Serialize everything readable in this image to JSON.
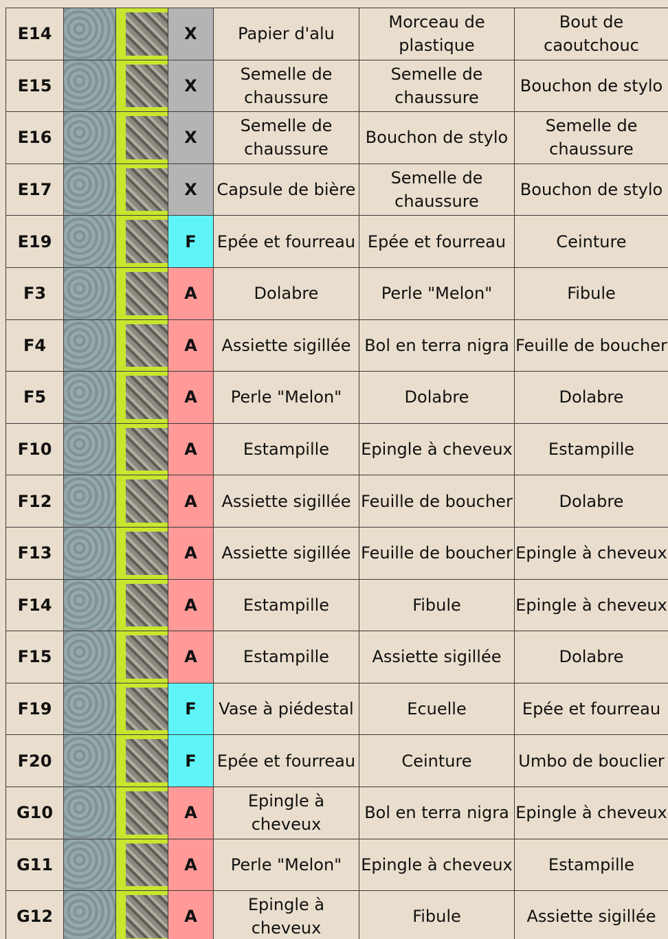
{
  "rows": [
    {
      "id": "E14",
      "type": "X",
      "color": "#b4b4b4",
      "items": [
        "Papier d'alu",
        "Morceau de plastique",
        "Bout de caoutchouc"
      ]
    },
    {
      "id": "E15",
      "type": "X",
      "color": "#b4b4b4",
      "items": [
        "Semelle de chaussure",
        "Semelle de chaussure",
        "Bouchon de stylo"
      ]
    },
    {
      "id": "E16",
      "type": "X",
      "color": "#b4b4b4",
      "items": [
        "Semelle de chaussure",
        "Bouchon de stylo",
        "Semelle de chaussure"
      ]
    },
    {
      "id": "E17",
      "type": "X",
      "color": "#b4b4b4",
      "items": [
        "Capsule de bière",
        "Semelle de chaussure",
        "Bouchon de stylo"
      ]
    },
    {
      "id": "E19",
      "type": "F",
      "color": "#5ff5f8",
      "items": [
        "Epée et fourreau",
        "Epée et fourreau",
        "Ceinture"
      ]
    },
    {
      "id": "F3",
      "type": "A",
      "color": "#ff9a98",
      "items": [
        "Dolabre",
        "Perle \"Melon\"",
        "Fibule"
      ]
    },
    {
      "id": "F4",
      "type": "A",
      "color": "#ff9a98",
      "items": [
        "Assiette sigillée",
        "Bol en terra nigra",
        "Feuille de boucher"
      ]
    },
    {
      "id": "F5",
      "type": "A",
      "color": "#ff9a98",
      "items": [
        "Perle \"Melon\"",
        "Dolabre",
        "Dolabre"
      ]
    },
    {
      "id": "F10",
      "type": "A",
      "color": "#ff9a98",
      "items": [
        "Estampille",
        "Epingle à cheveux",
        "Estampille"
      ]
    },
    {
      "id": "F12",
      "type": "A",
      "color": "#ff9a98",
      "items": [
        "Assiette sigillée",
        "Feuille de boucher",
        "Dolabre"
      ]
    },
    {
      "id": "F13",
      "type": "A",
      "color": "#ff9a98",
      "items": [
        "Assiette sigillée",
        "Feuille de boucher",
        "Epingle à cheveux"
      ]
    },
    {
      "id": "F14",
      "type": "A",
      "color": "#ff9a98",
      "items": [
        "Estampille",
        "Fibule",
        "Epingle à cheveux"
      ]
    },
    {
      "id": "F15",
      "type": "A",
      "color": "#ff9a98",
      "items": [
        "Estampille",
        "Assiette sigillée",
        "Dolabre"
      ]
    },
    {
      "id": "F19",
      "type": "F",
      "color": "#5ff5f8",
      "items": [
        "Vase à piédestal",
        "Ecuelle",
        "Epée et fourreau"
      ]
    },
    {
      "id": "F20",
      "type": "F",
      "color": "#5ff5f8",
      "items": [
        "Epée et fourreau",
        "Ceinture",
        "Umbo de bouclier"
      ]
    },
    {
      "id": "G10",
      "type": "A",
      "color": "#ff9a98",
      "items": [
        "Epingle à cheveux",
        "Bol en terra nigra",
        "Epingle à cheveux"
      ]
    },
    {
      "id": "G11",
      "type": "A",
      "color": "#ff9a98",
      "items": [
        "Perle \"Melon\"",
        "Epingle à cheveux",
        "Estampille"
      ]
    },
    {
      "id": "G12",
      "type": "A",
      "color": "#ff9a98",
      "items": [
        "Epingle à cheveux",
        "Fibule",
        "Assiette sigillée"
      ]
    }
  ]
}
